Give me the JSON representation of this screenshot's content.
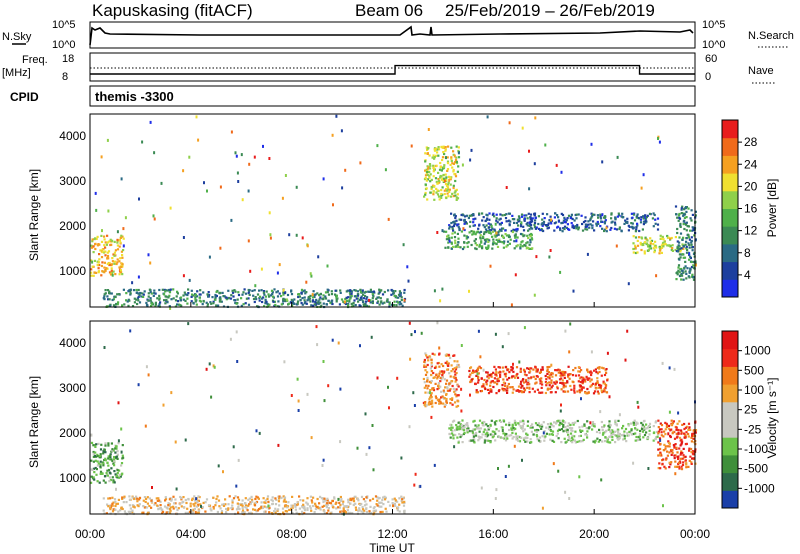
{
  "header": {
    "station": "Kapuskasing (fitACF)",
    "beam": "Beam 06",
    "dates": "25/Feb/2019 – 26/Feb/2019"
  },
  "top_panels": {
    "nsky_label": "N.Sky",
    "nsky_ticks": [
      "10^5",
      "10^0"
    ],
    "nsearch_label": "N.Search",
    "nsearch_ticks": [
      "10^5",
      "10^0"
    ],
    "freq_label": "Freq.",
    "freq_unit": "[MHz]",
    "freq_ticks": [
      "18",
      "8"
    ],
    "nave_label": "Nave",
    "nave_ticks": [
      "60",
      "0"
    ],
    "cpid_label": "CPID",
    "cpid_value": "themis -3300"
  },
  "time_axis": {
    "title": "Time UT",
    "ticks": [
      "00:00",
      "04:00",
      "08:00",
      "12:00",
      "16:00",
      "20:00",
      "00:00"
    ]
  },
  "power_panel": {
    "ylabel": "Slant Range [km]",
    "yticks": [
      "4000",
      "3000",
      "2000",
      "1000"
    ],
    "colorbar_label": "Power [dB]",
    "colorbar_ticks": [
      "28",
      "24",
      "20",
      "16",
      "12",
      "8",
      "4"
    ],
    "colors": [
      "#1f2ee8",
      "#1d3f9e",
      "#2a6a84",
      "#3b8a54",
      "#4fb04a",
      "#8fd04a",
      "#f0e030",
      "#f5a020",
      "#f06a1a",
      "#e81c1c"
    ]
  },
  "velocity_panel": {
    "ylabel": "Slant Range [km]",
    "yticks": [
      "4000",
      "3000",
      "2000",
      "1000"
    ],
    "colorbar_label": "Velocity [m s⁻¹]",
    "colorbar_ticks": [
      "1000",
      "500",
      "100",
      "25",
      "-25",
      "-100",
      "-500",
      "-1000"
    ],
    "colors": [
      "#1a3fa8",
      "#2d6a4a",
      "#3f8f3a",
      "#6cc34a",
      "#c8c8c0",
      "#c8c8c0",
      "#f0a030",
      "#f07a1a",
      "#ee2a1a",
      "#e01414"
    ]
  },
  "chart_data": {
    "type": "heatmap",
    "x_range_hours": [
      0,
      24
    ],
    "y_range_km": [
      180,
      4500
    ],
    "freq_segments_mhz": [
      {
        "from": 0,
        "to": 12.1,
        "value": 10.5
      },
      {
        "from": 12.1,
        "to": 21.8,
        "value": 13.5
      },
      {
        "from": 21.8,
        "to": 24,
        "value": 10.5
      }
    ],
    "power_regions": [
      {
        "t0": 0.0,
        "t1": 1.3,
        "r0": 900,
        "r1": 1800,
        "level": 7
      },
      {
        "t0": 0.5,
        "t1": 12.5,
        "r0": 200,
        "r1": 600,
        "level": 3
      },
      {
        "t0": 13.2,
        "t1": 14.6,
        "r0": 2600,
        "r1": 3800,
        "level": 6
      },
      {
        "t0": 14.2,
        "t1": 22.5,
        "r0": 1900,
        "r1": 2300,
        "level": 2
      },
      {
        "t0": 14.0,
        "t1": 17.5,
        "r0": 1500,
        "r1": 1900,
        "level": 4
      },
      {
        "t0": 21.5,
        "t1": 23.5,
        "r0": 1400,
        "r1": 1800,
        "level": 6
      },
      {
        "t0": 23.2,
        "t1": 24.0,
        "r0": 800,
        "r1": 2500,
        "level": 3
      }
    ],
    "velocity_regions": [
      {
        "t0": 0.0,
        "t1": 1.3,
        "r0": 900,
        "r1": 1800,
        "level": 3
      },
      {
        "t0": 0.5,
        "t1": 12.5,
        "r0": 200,
        "r1": 600,
        "level": 6
      },
      {
        "t0": 13.2,
        "t1": 14.6,
        "r0": 2600,
        "r1": 3800,
        "level": 7
      },
      {
        "t0": 15.0,
        "t1": 20.5,
        "r0": 2900,
        "r1": 3500,
        "level": 8
      },
      {
        "t0": 14.2,
        "t1": 22.5,
        "r0": 1800,
        "r1": 2300,
        "level": 4
      },
      {
        "t0": 22.5,
        "t1": 24.0,
        "r0": 1200,
        "r1": 2300,
        "level": 8
      }
    ]
  }
}
